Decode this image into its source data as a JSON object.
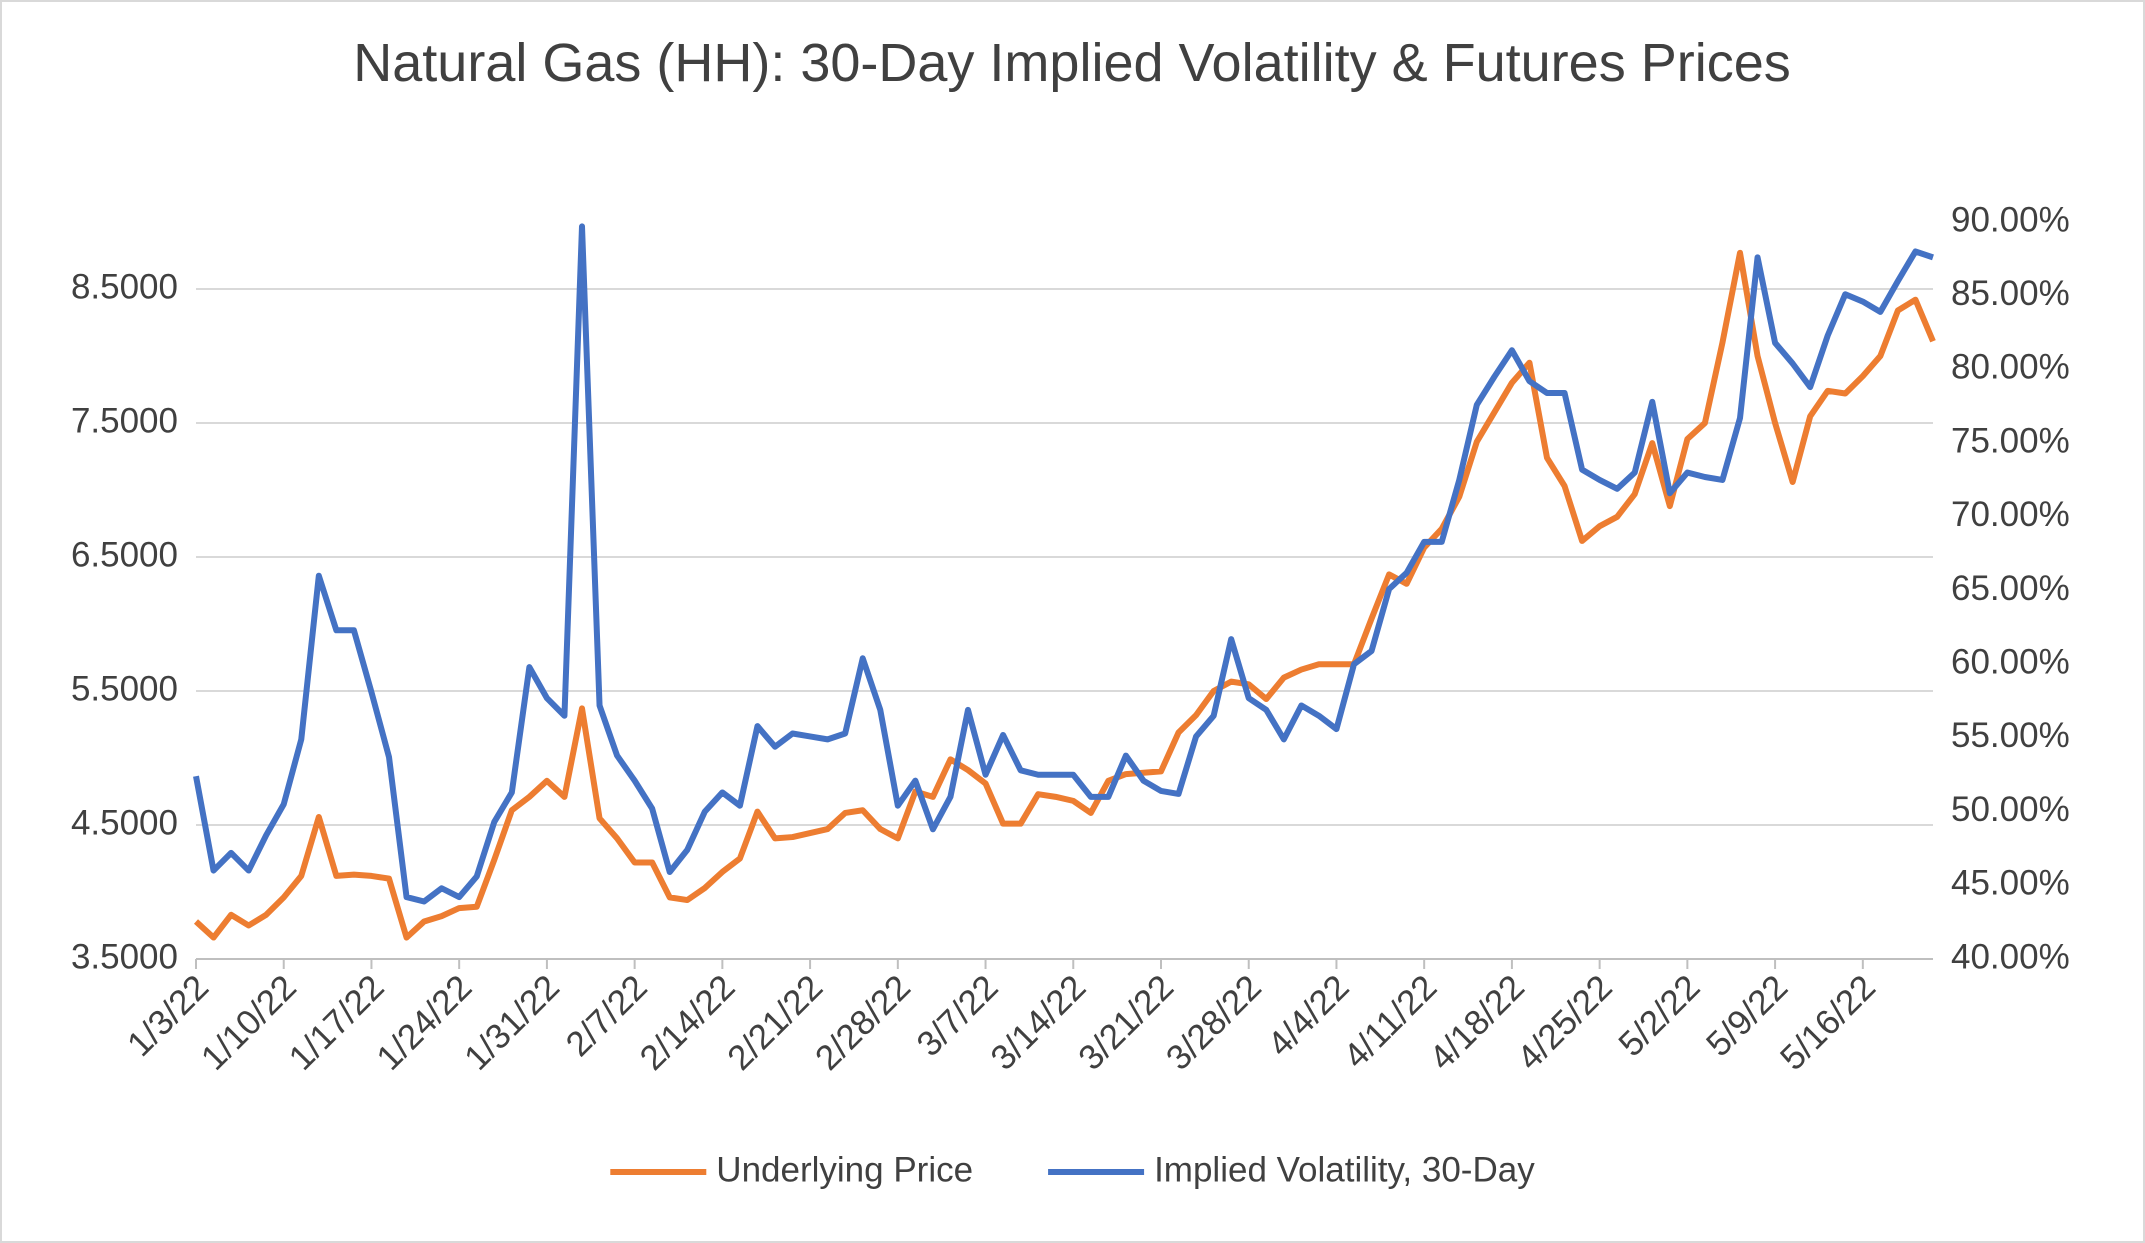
{
  "chart_data": {
    "type": "line",
    "title": "Natural Gas (HH): 30-Day Implied Volatility & Futures Prices",
    "categories": [
      "1/3/22",
      null,
      null,
      null,
      null,
      "1/10/22",
      null,
      null,
      null,
      null,
      "1/17/22",
      null,
      null,
      null,
      null,
      "1/24/22",
      null,
      null,
      null,
      null,
      "1/31/22",
      null,
      null,
      null,
      null,
      "2/7/22",
      null,
      null,
      null,
      null,
      "2/14/22",
      null,
      null,
      null,
      null,
      "2/21/22",
      null,
      null,
      null,
      null,
      "2/28/22",
      null,
      null,
      null,
      null,
      "3/7/22",
      null,
      null,
      null,
      null,
      "3/14/22",
      null,
      null,
      null,
      null,
      "3/21/22",
      null,
      null,
      null,
      null,
      "3/28/22",
      null,
      null,
      null,
      null,
      "4/4/22",
      null,
      null,
      null,
      null,
      "4/11/22",
      null,
      null,
      null,
      null,
      "4/18/22",
      null,
      null,
      null,
      null,
      "4/25/22",
      null,
      null,
      null,
      null,
      "5/2/22",
      null,
      null,
      null,
      null,
      "5/9/22",
      null,
      null,
      null,
      null,
      "5/16/22",
      null,
      null,
      null,
      null
    ],
    "series": [
      {
        "name": "Underlying Price",
        "color": "#ED7D31",
        "values": [
          3.78,
          3.66,
          3.83,
          3.75,
          3.83,
          3.96,
          4.12,
          4.56,
          4.12,
          4.13,
          4.12,
          4.1,
          3.66,
          3.78,
          3.82,
          3.88,
          3.89,
          4.24,
          4.61,
          4.71,
          4.83,
          4.71,
          5.37,
          4.55,
          4.4,
          4.22,
          4.22,
          3.96,
          3.94,
          4.03,
          4.15,
          4.25,
          4.6,
          4.4,
          4.41,
          4.44,
          4.47,
          4.59,
          4.61,
          4.47,
          4.4,
          4.75,
          4.71,
          4.99,
          4.91,
          4.81,
          4.51,
          4.51,
          4.73,
          4.71,
          4.68,
          4.59,
          4.83,
          4.88,
          4.89,
          4.9,
          5.19,
          5.32,
          5.5,
          5.57,
          5.55,
          5.44,
          5.6,
          5.66,
          5.7,
          5.7,
          5.7,
          6.04,
          6.37,
          6.3,
          6.57,
          6.71,
          6.95,
          7.36,
          7.58,
          7.8,
          7.95,
          7.24,
          7.03,
          6.62,
          6.73,
          6.8,
          6.97,
          7.35,
          6.88,
          7.38,
          7.5,
          8.1,
          8.77,
          8.0,
          7.5,
          7.06,
          7.55,
          7.74,
          7.72,
          7.85,
          8.0,
          8.34,
          8.42,
          8.11
        ]
      },
      {
        "name": "Implied Volatility, 30-Day",
        "color": "#4472C4",
        "axis": "y2",
        "values": [
          52.4,
          46.0,
          47.2,
          46.0,
          48.4,
          50.5,
          54.9,
          66.0,
          62.3,
          62.3,
          58.1,
          53.7,
          44.2,
          43.9,
          44.8,
          44.2,
          45.6,
          49.3,
          51.3,
          59.8,
          57.7,
          56.5,
          89.7,
          57.2,
          53.8,
          52.1,
          50.2,
          45.9,
          47.4,
          50.0,
          51.3,
          50.4,
          55.8,
          54.4,
          55.3,
          55.1,
          54.9,
          55.3,
          60.4,
          56.9,
          50.4,
          52.1,
          48.8,
          51.0,
          56.9,
          52.5,
          55.2,
          52.8,
          52.5,
          52.5,
          52.5,
          51.0,
          51.0,
          53.8,
          52.1,
          51.4,
          51.2,
          55.1,
          56.5,
          61.7,
          57.7,
          56.9,
          54.9,
          57.2,
          56.5,
          55.6,
          60.0,
          60.9,
          65.1,
          66.2,
          68.3,
          68.3,
          72.5,
          77.6,
          79.5,
          81.3,
          79.2,
          78.4,
          78.4,
          73.2,
          72.5,
          71.9,
          73.0,
          77.8,
          71.6,
          73.0,
          72.7,
          72.5,
          76.7,
          87.6,
          81.8,
          80.4,
          78.8,
          82.3,
          85.1,
          84.6,
          83.9,
          86.0,
          88.0,
          87.6
        ]
      }
    ],
    "ylim": [
      3.5,
      9.0
    ],
    "yticks": [
      {
        "value": 3.5,
        "label": "3.5000"
      },
      {
        "value": 4.5,
        "label": "4.5000"
      },
      {
        "value": 5.5,
        "label": "5.5000"
      },
      {
        "value": 6.5,
        "label": "6.5000"
      },
      {
        "value": 7.5,
        "label": "7.5000"
      },
      {
        "value": 8.5,
        "label": "8.5000"
      }
    ],
    "y2lim": [
      40,
      90
    ],
    "y2ticks": [
      {
        "value": 40,
        "label": "40.00%"
      },
      {
        "value": 45,
        "label": "45.00%"
      },
      {
        "value": 50,
        "label": "50.00%"
      },
      {
        "value": 55,
        "label": "55.00%"
      },
      {
        "value": 60,
        "label": "60.00%"
      },
      {
        "value": 65,
        "label": "65.00%"
      },
      {
        "value": 70,
        "label": "70.00%"
      },
      {
        "value": 75,
        "label": "75.00%"
      },
      {
        "value": 80,
        "label": "80.00%"
      },
      {
        "value": 85,
        "label": "85.00%"
      },
      {
        "value": 90,
        "label": "90.00%"
      }
    ],
    "grid": true,
    "legend": "bottom"
  }
}
